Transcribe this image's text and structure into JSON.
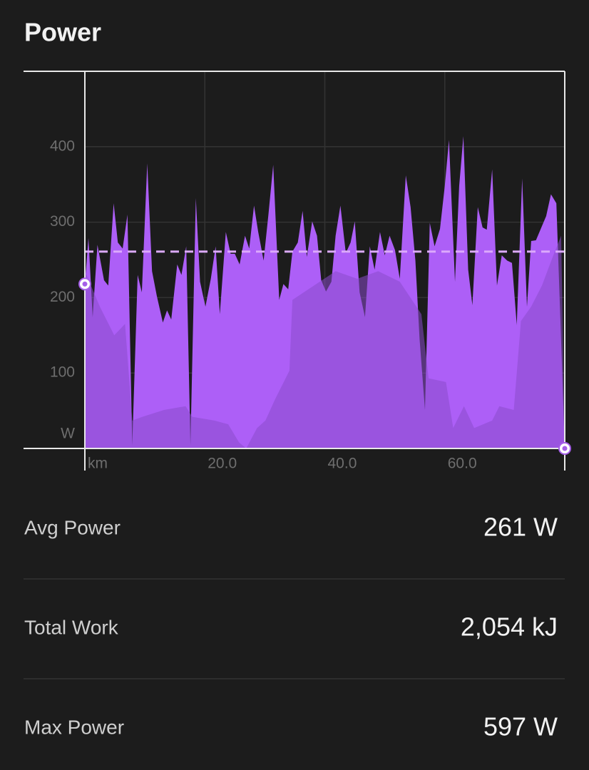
{
  "header": {
    "title": "Power"
  },
  "chart_data": {
    "type": "area",
    "xlim": [
      0,
      80
    ],
    "ylim": [
      0,
      500
    ],
    "xticks": [
      {
        "value": 0,
        "label": "km"
      },
      {
        "value": 20,
        "label": "20.0"
      },
      {
        "value": 40,
        "label": "40.0"
      },
      {
        "value": 60,
        "label": "60.0"
      }
    ],
    "yticks": [
      {
        "value": 0,
        "label": "W"
      },
      100,
      200,
      300,
      400
    ],
    "grid": true,
    "reference_line": 261,
    "reference_color": "#dcaafc",
    "series": [
      {
        "color": "#ad5ff7",
        "x": [
          0.0,
          0.6,
          1.3,
          2.1,
          3.2,
          3.9,
          4.8,
          5.5,
          6.3,
          7.1,
          7.9,
          8.8,
          9.5,
          10.4,
          11.2,
          12.0,
          13.0,
          13.7,
          14.4,
          15.4,
          16.1,
          16.9,
          17.6,
          18.5,
          19.2,
          20.1,
          21.0,
          21.8,
          22.5,
          23.5,
          24.3,
          25.0,
          25.8,
          26.7,
          27.4,
          28.2,
          28.9,
          29.8,
          30.6,
          31.4,
          32.4,
          33.1,
          33.9,
          34.6,
          35.5,
          36.3,
          37.0,
          37.9,
          38.7,
          39.4,
          40.2,
          41.1,
          41.8,
          42.6,
          43.5,
          44.3,
          45.0,
          45.8,
          46.7,
          47.5,
          48.3,
          49.2,
          50.0,
          50.8,
          51.7,
          52.5,
          53.5,
          54.3,
          55.1,
          55.8,
          56.7,
          57.5,
          58.3,
          59.2,
          60.0,
          60.7,
          61.7,
          62.4,
          63.1,
          63.9,
          64.6,
          65.5,
          66.3,
          67.0,
          67.9,
          68.7,
          69.5,
          70.4,
          71.2,
          72.0,
          72.9,
          73.7,
          74.4,
          75.2,
          76.1,
          76.9,
          77.7,
          78.6,
          79.4,
          80.0
        ],
        "values": [
          218,
          279,
          174,
          270,
          223,
          216,
          325,
          273,
          265,
          310,
          4,
          230,
          207,
          378,
          235,
          202,
          167,
          183,
          171,
          244,
          230,
          268,
          4,
          332,
          221,
          188,
          225,
          268,
          178,
          287,
          258,
          258,
          244,
          282,
          265,
          322,
          287,
          249,
          310,
          376,
          197,
          218,
          211,
          261,
          273,
          315,
          254,
          301,
          282,
          223,
          208,
          221,
          282,
          322,
          259,
          273,
          301,
          207,
          174,
          268,
          237,
          287,
          256,
          282,
          263,
          225,
          362,
          320,
          249,
          145,
          51,
          299,
          268,
          291,
          348,
          409,
          221,
          348,
          414,
          237,
          190,
          320,
          293,
          290,
          370,
          216,
          256,
          249,
          246,
          164,
          358,
          188,
          275,
          276,
          293,
          308,
          337,
          325,
          141,
          0
        ]
      },
      {
        "color": "#8a4bcc",
        "x": [
          0,
          2.5,
          4.9,
          6.7,
          7.9,
          9.6,
          13.2,
          16.8,
          17.9,
          21.6,
          23.9,
          25.7,
          26.9,
          28.7,
          30.1,
          31.7,
          32.9,
          34.1,
          34.6,
          38.2,
          41.8,
          45.4,
          48.9,
          52.5,
          56.1,
          57.3,
          60.2,
          61.4,
          63.2,
          64.9,
          67.9,
          69.1,
          71.5,
          72.7,
          74.4,
          76.2,
          78.0,
          79.4,
          80.0
        ],
        "values": [
          235,
          188,
          150,
          165,
          37,
          42,
          51,
          56,
          42,
          37,
          32,
          8,
          0,
          27,
          37,
          65,
          84,
          103,
          197,
          216,
          235,
          225,
          235,
          221,
          178,
          93,
          88,
          27,
          56,
          27,
          37,
          56,
          51,
          169,
          188,
          216,
          254,
          282,
          0
        ]
      }
    ]
  },
  "stats": [
    {
      "label": "Avg Power",
      "value": "261 W"
    },
    {
      "label": "Total Work",
      "value": "2,054 kJ"
    },
    {
      "label": "Max Power",
      "value": "597 W"
    }
  ]
}
